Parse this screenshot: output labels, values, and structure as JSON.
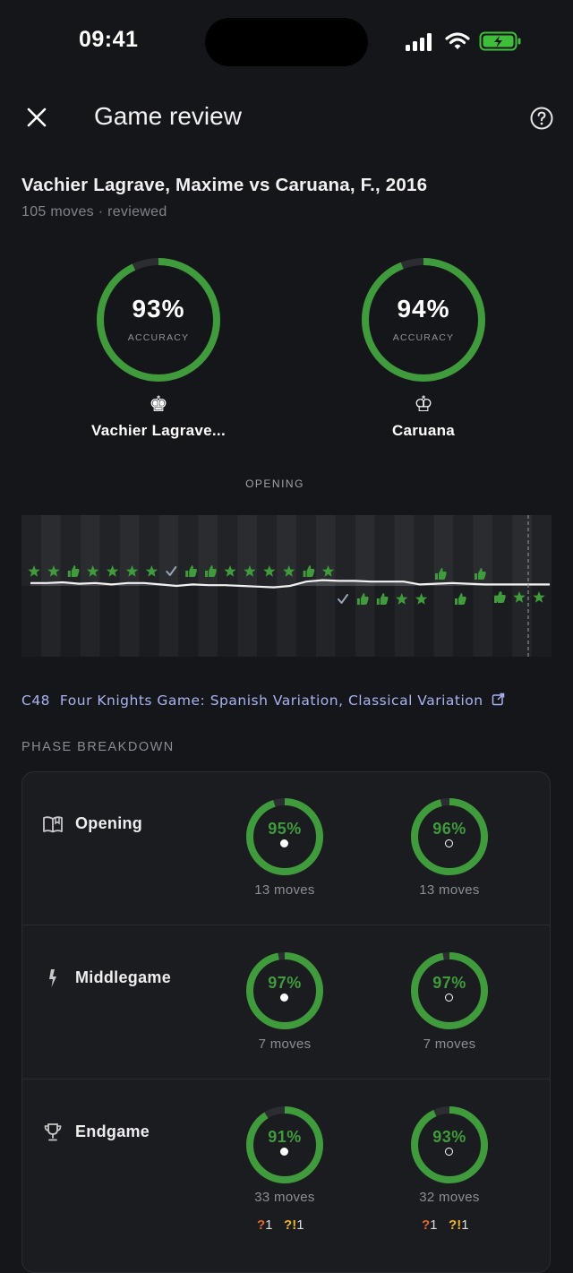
{
  "status_bar": {
    "time": "09:41",
    "battery_color": "#3fbe3a"
  },
  "header": {
    "title": "Game review",
    "close_icon": "close-icon",
    "help_icon": "help-circle-icon"
  },
  "game": {
    "title": "Vachier Lagrave, Maxime vs Caruana, F., 2016",
    "subtitle": "105 moves · reviewed"
  },
  "players": [
    {
      "name": "Vachier Lagrave...",
      "piece": "♚",
      "accuracy": 0.93,
      "accuracy_text": "93%",
      "accuracy_label": "ACCURACY"
    },
    {
      "name": "Caruana",
      "piece": "♔",
      "accuracy": 0.94,
      "accuracy_text": "94%",
      "accuracy_label": "ACCURACY"
    }
  ],
  "graph": {
    "phase_label": "OPENING",
    "colors": {
      "good": "#3f9b3b",
      "check": "#9aa3b8",
      "line": "#f2f2f2"
    },
    "eval": [
      0.1,
      0.1,
      0.11,
      0.09,
      0.1,
      0.08,
      0.1,
      0.1,
      0.08,
      0.06,
      0.08,
      0.07,
      0.07,
      0.06,
      0.05,
      0.04,
      0.06,
      0.12,
      0.14,
      0.13,
      0.13,
      0.12,
      0.12,
      0.12,
      0.08,
      0.09,
      0.1,
      0.09,
      0.08,
      0.08,
      0.08,
      0.08,
      0.08
    ],
    "white_marks": [
      "star",
      "star",
      "thumb",
      "star",
      "star",
      "star",
      "star",
      "check",
      "thumb",
      "thumb",
      "star",
      "star",
      "star",
      "star",
      "thumb",
      "star"
    ],
    "black_marks": [
      "check",
      "thumb",
      "thumb",
      "star",
      "star"
    ],
    "black_late_marks": [
      "thumb",
      "thumb",
      "star",
      "star",
      "star"
    ],
    "white_late_marks": [
      "thumb",
      "thumb"
    ]
  },
  "opening": {
    "code": "C48",
    "name": "Four Knights Game: Spanish Variation, Classical Variation",
    "link_icon": "external-link-icon"
  },
  "phase_breakdown": {
    "title": "PHASE BREAKDOWN",
    "accent": "#3f9b3b",
    "phases": [
      {
        "name": "Opening",
        "icon": "book-icon",
        "white": {
          "accuracy": 0.95,
          "text": "95%",
          "moves": "13 moves"
        },
        "black": {
          "accuracy": 0.96,
          "text": "96%",
          "moves": "13 moves"
        }
      },
      {
        "name": "Middlegame",
        "icon": "lightning-icon",
        "white": {
          "accuracy": 0.97,
          "text": "97%",
          "moves": "7 moves"
        },
        "black": {
          "accuracy": 0.97,
          "text": "97%",
          "moves": "7 moves"
        }
      },
      {
        "name": "Endgame",
        "icon": "trophy-icon",
        "white": {
          "accuracy": 0.91,
          "text": "91%",
          "moves": "33 moves",
          "mistakes": {
            "q": "?",
            "q_count": "1",
            "qi": "?!",
            "qi_count": "1"
          }
        },
        "black": {
          "accuracy": 0.93,
          "text": "93%",
          "moves": "32 moves",
          "mistakes": {
            "q": "?",
            "q_count": "1",
            "qi": "?!",
            "qi_count": "1"
          }
        }
      }
    ]
  }
}
